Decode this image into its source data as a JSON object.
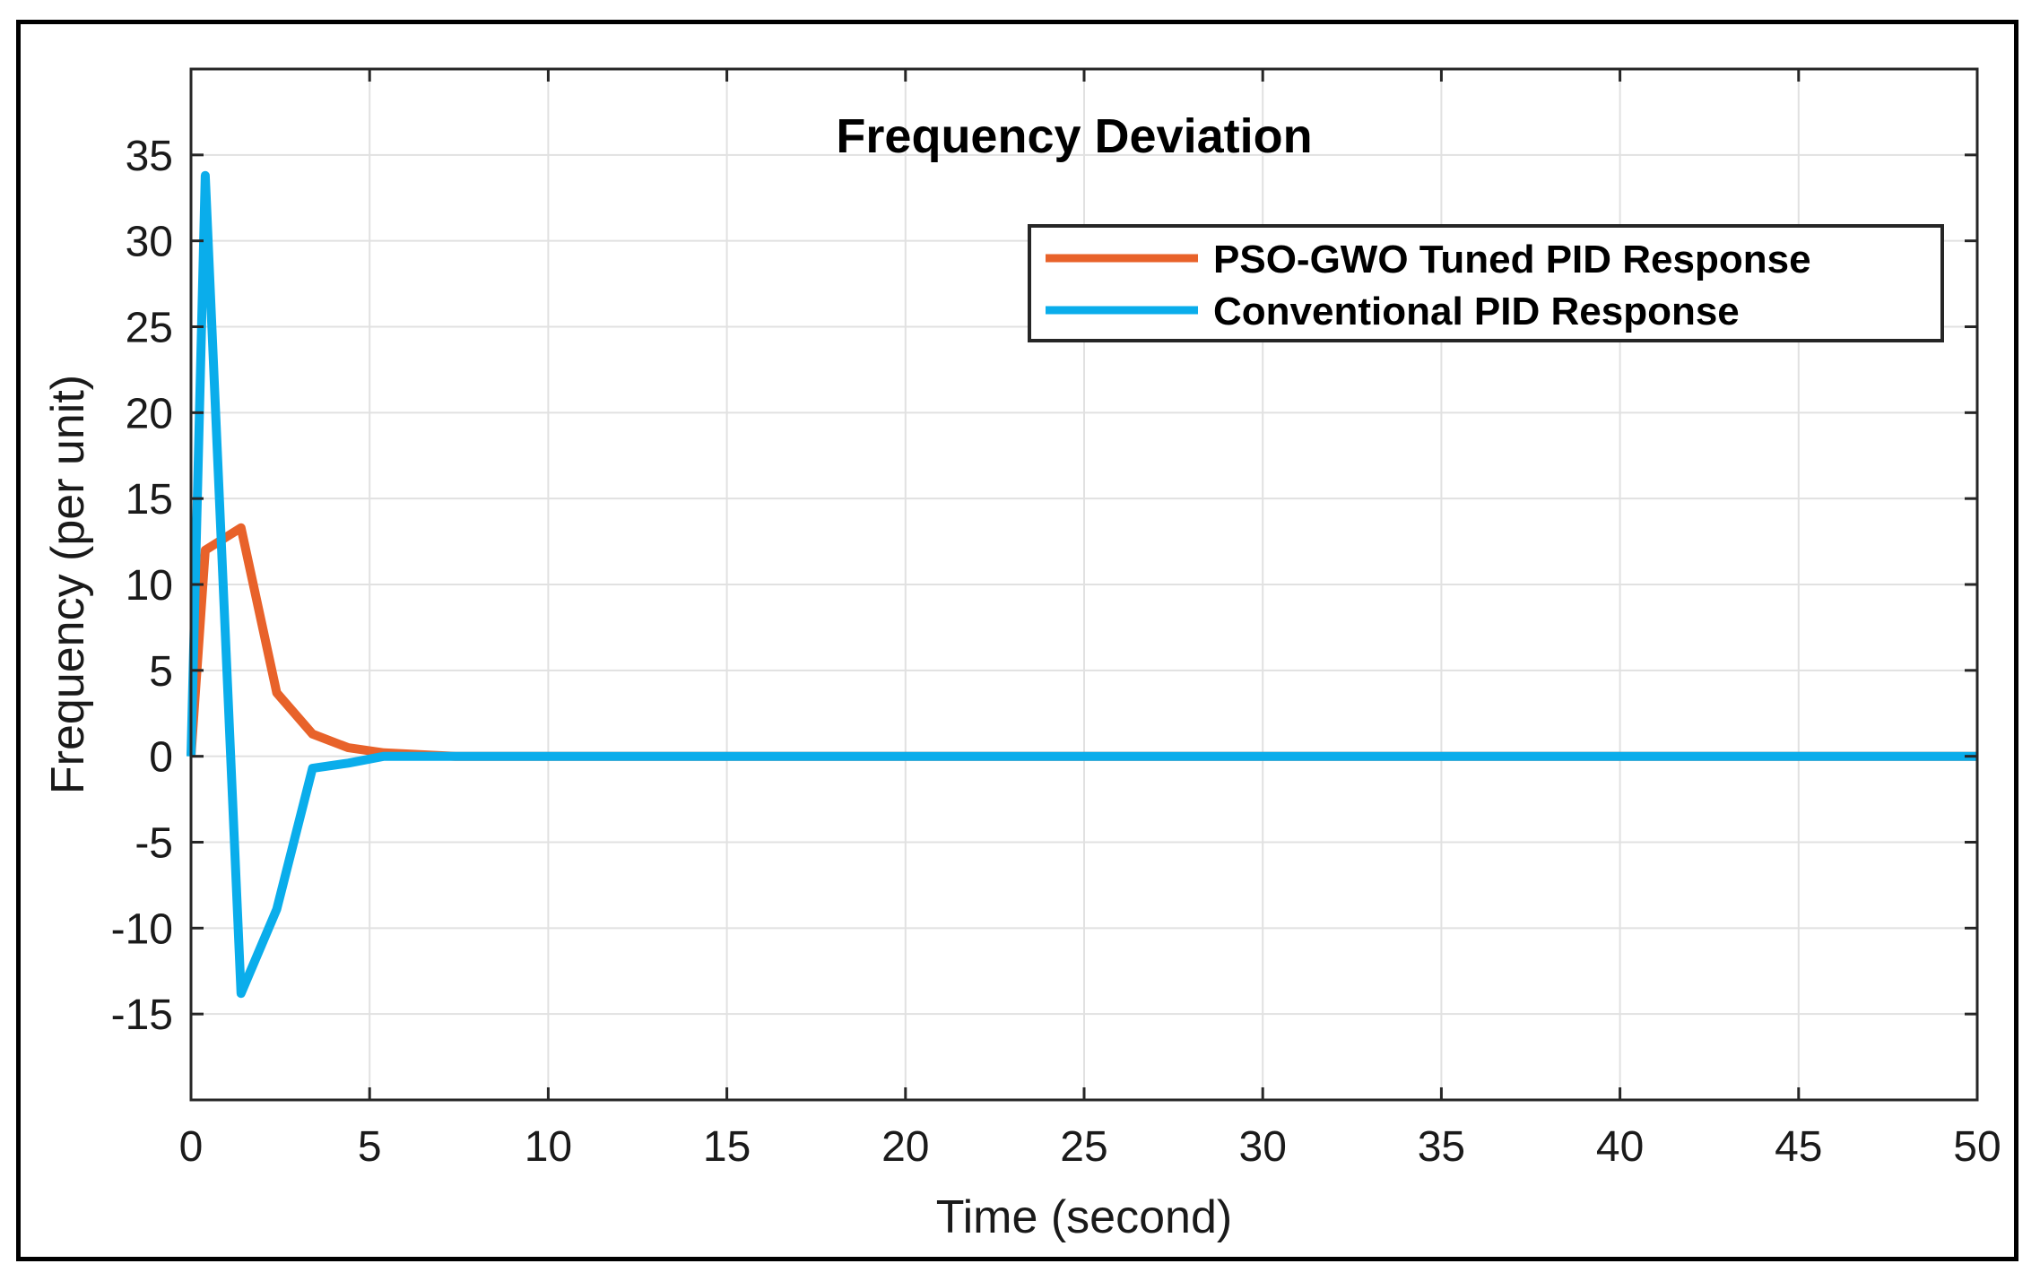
{
  "chart_data": {
    "type": "line",
    "title": "Frequency Deviation",
    "xlabel": "Time (second)",
    "ylabel": "Frequency (per unit)",
    "xlim": [
      0,
      50
    ],
    "ylim": [
      -20,
      40
    ],
    "xticks": [
      0,
      5,
      10,
      15,
      20,
      25,
      30,
      35,
      40,
      45,
      50
    ],
    "yticks": [
      -15,
      -10,
      -5,
      0,
      5,
      10,
      15,
      20,
      25,
      30,
      35
    ],
    "grid": true,
    "legend_position": "top-right",
    "series": [
      {
        "name": "PSO-GWO Tuned PID Response",
        "color": "#e8622a",
        "x": [
          0,
          0.4,
          1.4,
          2.4,
          3.4,
          4.4,
          5.4,
          6.4,
          7.4,
          50
        ],
        "y": [
          0,
          12,
          13.3,
          3.7,
          1.3,
          0.5,
          0.2,
          0.1,
          0,
          0
        ]
      },
      {
        "name": "Conventional PID Response",
        "color": "#0aadeb",
        "x": [
          0,
          0.4,
          1.4,
          2.4,
          3.4,
          4.4,
          5.4,
          6.4,
          7.4,
          50
        ],
        "y": [
          0,
          33.8,
          -13.8,
          -8.9,
          -0.7,
          -0.4,
          0,
          0,
          0,
          0
        ]
      }
    ]
  }
}
